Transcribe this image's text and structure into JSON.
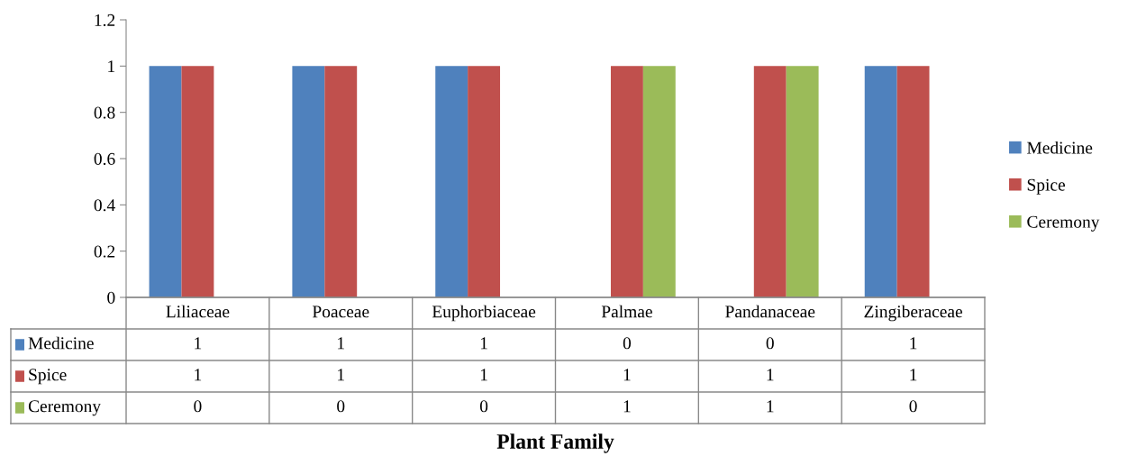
{
  "chart_data": {
    "type": "bar",
    "annotations": [
      "Plant Family"
    ],
    "categories": [
      "Liliaceae",
      "Poaceae",
      "Euphorbiaceae",
      "Palmae",
      "Pandanaceae",
      "Zingiberaceae"
    ],
    "series": [
      {
        "name": "Medicine",
        "color": "#4f81bd",
        "values": [
          1,
          1,
          1,
          0,
          0,
          1
        ]
      },
      {
        "name": "Spice",
        "color": "#c0504d",
        "values": [
          1,
          1,
          1,
          1,
          1,
          1
        ]
      },
      {
        "name": "Ceremony",
        "color": "#9bbb59",
        "values": [
          0,
          0,
          0,
          1,
          1,
          0
        ]
      }
    ],
    "ylim": [
      0,
      1.2
    ],
    "yticks": [
      0,
      0.2,
      0.4,
      0.6,
      0.8,
      1,
      1.2
    ],
    "grid": false,
    "legend": "right",
    "data_labels": true
  }
}
